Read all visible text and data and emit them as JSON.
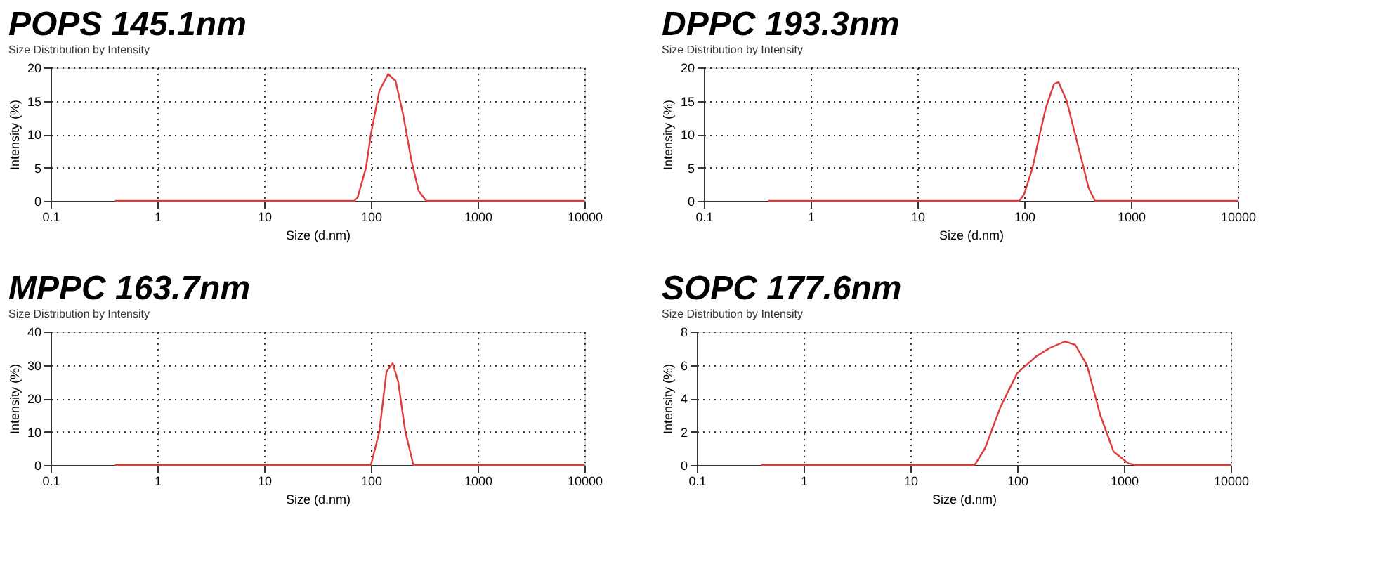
{
  "chart_data": [
    {
      "type": "line",
      "title": "POPS 145.1nm",
      "subtitle": "Size Distribution by Intensity",
      "xlabel": "Size (d.nm)",
      "ylabel": "Intensity (%)",
      "log": "x",
      "grid": true,
      "line_style": "solid",
      "xlim": [
        0.1,
        10000
      ],
      "xticks": [
        0.1,
        1,
        10,
        100,
        1000,
        10000
      ],
      "ylim": [
        0,
        20
      ],
      "yticks": [
        0,
        5,
        10,
        15,
        20
      ],
      "x": [
        0.4,
        70,
        75,
        90,
        100,
        120,
        145,
        170,
        200,
        240,
        280,
        330,
        10000
      ],
      "series": [
        {
          "color": "#e03a3a",
          "values": [
            0,
            0,
            0.5,
            5,
            10,
            16.5,
            19,
            18,
            13,
            6,
            1.5,
            0,
            0
          ]
        }
      ]
    },
    {
      "type": "line",
      "title": "DPPC 193.3nm",
      "subtitle": "Size Distribution by Intensity",
      "xlabel": "Size (d.nm)",
      "ylabel": "Intensity (%)",
      "log": "x",
      "grid": true,
      "line_style": "solid",
      "xlim": [
        0.1,
        10000
      ],
      "xticks": [
        0.1,
        1,
        10,
        100,
        1000,
        10000
      ],
      "ylim": [
        0,
        20
      ],
      "yticks": [
        0,
        5,
        10,
        15,
        20
      ],
      "x": [
        0.4,
        90,
        100,
        120,
        140,
        160,
        190,
        210,
        250,
        300,
        360,
        400,
        460,
        10000
      ],
      "series": [
        {
          "color": "#e03a3a",
          "values": [
            0,
            0,
            1,
            5,
            10,
            14,
            17.5,
            17.8,
            15,
            10,
            5,
            2,
            0,
            0
          ]
        }
      ]
    },
    {
      "type": "line",
      "title": "MPPC 163.7nm",
      "subtitle": "Size Distribution by Intensity",
      "xlabel": "Size (d.nm)",
      "ylabel": "Intensity (%)",
      "log": "x",
      "grid": true,
      "line_style": "solid",
      "xlim": [
        0.1,
        10000
      ],
      "xticks": [
        0.1,
        1,
        10,
        100,
        1000,
        10000
      ],
      "ylim": [
        0,
        40
      ],
      "yticks": [
        0,
        10,
        20,
        30,
        40
      ],
      "x": [
        0.4,
        100,
        120,
        140,
        160,
        180,
        210,
        250,
        10000
      ],
      "series": [
        {
          "color": "#e03a3a",
          "values": [
            0,
            0,
            10,
            28,
            30.5,
            25,
            10,
            0,
            0
          ]
        }
      ]
    },
    {
      "type": "line",
      "title": "SOPC 177.6nm",
      "subtitle": "Size Distribution by Intensity",
      "xlabel": "Size (d.nm)",
      "ylabel": "Intensity (%)",
      "log": "x",
      "grid": true,
      "line_style": "solid",
      "xlim": [
        0.1,
        10000
      ],
      "xticks": [
        0.1,
        1,
        10,
        100,
        1000,
        10000
      ],
      "ylim": [
        0,
        8
      ],
      "yticks": [
        0,
        2,
        4,
        6,
        8
      ],
      "x": [
        0.4,
        40,
        50,
        70,
        100,
        150,
        200,
        280,
        350,
        450,
        600,
        800,
        1100,
        1300,
        10000
      ],
      "series": [
        {
          "color": "#e03a3a",
          "values": [
            0,
            0,
            1,
            3.5,
            5.5,
            6.5,
            7,
            7.4,
            7.2,
            6,
            3,
            0.8,
            0.1,
            0,
            0
          ]
        }
      ]
    }
  ]
}
